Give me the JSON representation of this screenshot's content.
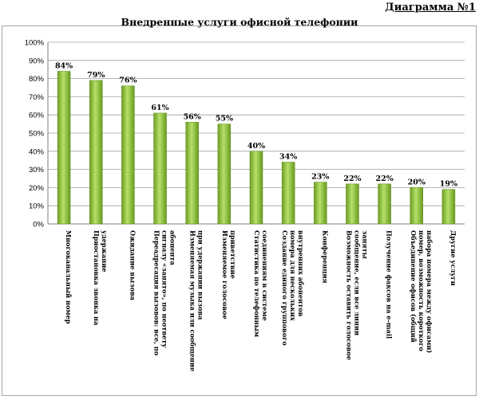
{
  "header": {
    "diagram_number": "Диаграмма №1"
  },
  "chart_data": {
    "type": "bar",
    "title": "Внедренные услуги офисной телефонии",
    "xlabel": "",
    "ylabel": "",
    "ylim": [
      0,
      100
    ],
    "y_ticks": [
      "0%",
      "10%",
      "20%",
      "30%",
      "40%",
      "50%",
      "60%",
      "70%",
      "80%",
      "90%",
      "100%"
    ],
    "grid": true,
    "legend": "none",
    "bar_color": "#8fc43c",
    "categories": [
      "Многоканальный номер",
      "Приостановка звонка на удержание",
      "Ожидание вызова",
      "Переадресация вызовов: все, по сигналу «занято», по неответу абонента",
      "Изменяемая музыка или сообщение при удержании вызова",
      "Изменяемое голосовое приветствие",
      "Статистика по телефонным соединениям в системе",
      "Создание единого группового номера для нескольких внутренних абонентов",
      "Конференция",
      "Возможность оставить голосовое сообщение, если все линии заняты",
      "Получение факсов на e-mail",
      "Объединение офисов (общий номер, возможность короткого набора номера между офисами)",
      "Другие услуги"
    ],
    "values": [
      84,
      79,
      76,
      61,
      56,
      55,
      40,
      34,
      23,
      22,
      22,
      20,
      19
    ],
    "data_labels": [
      "84%",
      "79%",
      "76%",
      "61%",
      "56%",
      "55%",
      "40%",
      "34%",
      "23%",
      "22%",
      "22%",
      "20%",
      "19%"
    ]
  }
}
